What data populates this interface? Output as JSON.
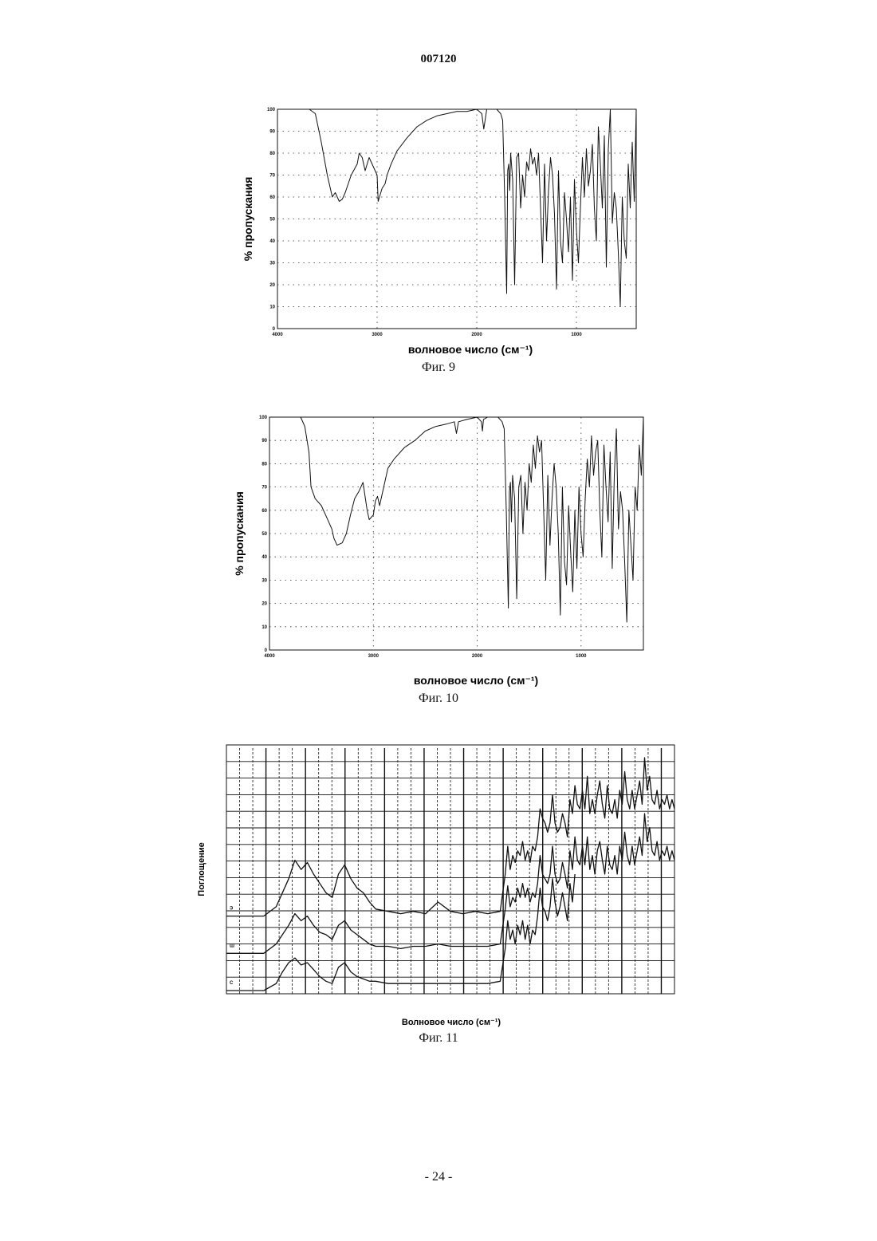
{
  "document": {
    "page_number": "007120",
    "footer": "- 24 -"
  },
  "chart_data": [
    {
      "type": "line",
      "caption": "Фиг. 9",
      "xlabel": "волновое число (см⁻¹)",
      "ylabel": "% пропускания",
      "xlim": [
        4000,
        400
      ],
      "ylim": [
        0,
        100
      ],
      "xticks": [
        "4000",
        "3000",
        "2000",
        "1000"
      ],
      "yticks": [
        "100",
        "90",
        "80",
        "70",
        "60",
        "50",
        "40",
        "30",
        "20",
        "10",
        "0"
      ],
      "grid": true,
      "series": [
        {
          "x": [
            4000,
            3680,
            3620,
            3560,
            3500,
            3450,
            3420,
            3380,
            3350,
            3320,
            3260,
            3200,
            3180,
            3150,
            3120,
            3080,
            3000,
            2990,
            2950,
            2920,
            2900,
            2860,
            2800,
            2700,
            2600,
            2500,
            2400,
            2300,
            2200,
            2100,
            2000,
            1950,
            1930,
            1900,
            1800,
            1760,
            1740,
            1720,
            1700,
            1690,
            1680,
            1670,
            1660,
            1640,
            1620,
            1600,
            1580,
            1560,
            1540,
            1520,
            1500,
            1480,
            1460,
            1440,
            1420,
            1400,
            1380,
            1360,
            1340,
            1320,
            1300,
            1280,
            1260,
            1240,
            1220,
            1200,
            1180,
            1160,
            1140,
            1120,
            1100,
            1080,
            1060,
            1040,
            1020,
            1000,
            980,
            960,
            940,
            920,
            900,
            880,
            860,
            840,
            820,
            800,
            780,
            760,
            740,
            720,
            700,
            680,
            660,
            640,
            620,
            600,
            580,
            560,
            540,
            520,
            500,
            480,
            460,
            440,
            420,
            400
          ],
          "y": [
            100,
            100,
            98,
            85,
            70,
            60,
            62,
            58,
            59,
            62,
            70,
            75,
            80,
            78,
            72,
            78,
            70,
            58,
            64,
            66,
            70,
            75,
            81,
            87,
            92,
            95,
            97,
            98,
            99,
            99,
            100,
            98,
            91,
            100,
            100,
            98,
            95,
            60,
            16,
            72,
            75,
            63,
            80,
            68,
            20,
            78,
            80,
            55,
            70,
            60,
            76,
            72,
            82,
            75,
            78,
            70,
            80,
            55,
            30,
            75,
            40,
            63,
            78,
            70,
            52,
            18,
            72,
            40,
            30,
            62,
            50,
            35,
            60,
            22,
            68,
            45,
            30,
            55,
            78,
            60,
            82,
            65,
            72,
            84,
            55,
            40,
            92,
            75,
            55,
            88,
            28,
            82,
            100,
            48,
            62,
            55,
            35,
            10,
            60,
            40,
            32,
            75,
            55,
            85,
            58,
            100
          ]
        }
      ]
    },
    {
      "type": "line",
      "caption": "Фиг. 10",
      "xlabel": "волновое число (см⁻¹)",
      "ylabel": "% пропускания",
      "xlim": [
        4000,
        400
      ],
      "ylim": [
        0,
        100
      ],
      "xticks": [
        "4000",
        "3000",
        "2000",
        "1000"
      ],
      "yticks": [
        "100",
        "90",
        "80",
        "70",
        "60",
        "50",
        "40",
        "30",
        "20",
        "10",
        "0"
      ],
      "grid": true,
      "series": [
        {
          "x": [
            4000,
            3700,
            3660,
            3620,
            3600,
            3560,
            3500,
            3450,
            3400,
            3380,
            3350,
            3300,
            3260,
            3220,
            3180,
            3140,
            3100,
            3060,
            3040,
            3000,
            2980,
            2960,
            2940,
            2900,
            2860,
            2800,
            2700,
            2600,
            2500,
            2400,
            2300,
            2220,
            2200,
            2180,
            2100,
            2000,
            1960,
            1950,
            1940,
            1900,
            1800,
            1760,
            1740,
            1720,
            1700,
            1690,
            1680,
            1670,
            1660,
            1640,
            1620,
            1600,
            1580,
            1560,
            1540,
            1520,
            1500,
            1480,
            1460,
            1440,
            1420,
            1400,
            1380,
            1360,
            1340,
            1320,
            1300,
            1280,
            1260,
            1240,
            1220,
            1200,
            1180,
            1160,
            1140,
            1120,
            1100,
            1080,
            1060,
            1040,
            1020,
            1000,
            980,
            960,
            940,
            920,
            900,
            880,
            860,
            840,
            820,
            800,
            780,
            760,
            740,
            720,
            700,
            680,
            660,
            640,
            620,
            600,
            580,
            560,
            540,
            520,
            500,
            480,
            460,
            440,
            420,
            400
          ],
          "y": [
            100,
            100,
            96,
            85,
            70,
            65,
            62,
            57,
            52,
            48,
            45,
            46,
            50,
            58,
            65,
            68,
            72,
            60,
            56,
            58,
            64,
            66,
            62,
            70,
            78,
            82,
            87,
            90,
            94,
            96,
            97,
            98,
            93,
            98,
            99,
            100,
            98,
            94,
            99,
            100,
            100,
            98,
            95,
            60,
            18,
            68,
            72,
            55,
            75,
            65,
            22,
            70,
            75,
            50,
            72,
            60,
            80,
            72,
            88,
            78,
            92,
            85,
            90,
            60,
            30,
            75,
            45,
            65,
            80,
            70,
            50,
            15,
            70,
            38,
            28,
            62,
            42,
            25,
            60,
            35,
            70,
            50,
            40,
            65,
            82,
            70,
            92,
            75,
            85,
            90,
            60,
            40,
            88,
            70,
            55,
            85,
            35,
            75,
            95,
            52,
            68,
            60,
            38,
            12,
            60,
            45,
            30,
            70,
            60,
            88,
            75,
            100
          ]
        }
      ]
    },
    {
      "type": "line",
      "caption": "Фиг. 11",
      "xlabel": "Волновое число (см⁻¹)",
      "ylabel": "Поглощение",
      "xlim": [
        4000,
        400
      ],
      "grid": true,
      "series": [
        {
          "name": "Э",
          "x": [
            4000,
            3700,
            3600,
            3500,
            3450,
            3400,
            3350,
            3300,
            3250,
            3200,
            3150,
            3100,
            3050,
            3000,
            2950,
            2900,
            2850,
            2800,
            2700,
            2600,
            2500,
            2400,
            2300,
            2200,
            2100,
            2000,
            1900,
            1800,
            1760,
            1740,
            1720,
            1700,
            1680,
            1660,
            1640,
            1620,
            1600,
            1580,
            1560,
            1540,
            1520,
            1500,
            1480,
            1460,
            1440,
            1420,
            1400,
            1380,
            1360,
            1340,
            1320,
            1300,
            1280,
            1260,
            1240,
            1220,
            1200,
            1180,
            1160,
            1140,
            1120,
            1100,
            1080,
            1060,
            1040,
            1020,
            1000,
            980,
            960,
            940,
            920,
            900,
            880,
            860,
            840,
            820,
            800,
            780,
            760,
            740,
            720,
            700,
            680,
            660,
            640,
            620,
            600,
            580,
            560,
            540,
            520,
            500,
            480,
            460,
            440,
            420,
            400
          ],
          "y": [
            0.32,
            0.32,
            0.36,
            0.48,
            0.56,
            0.52,
            0.55,
            0.5,
            0.46,
            0.42,
            0.4,
            0.5,
            0.54,
            0.48,
            0.44,
            0.42,
            0.38,
            0.35,
            0.34,
            0.33,
            0.34,
            0.33,
            0.38,
            0.34,
            0.33,
            0.34,
            0.33,
            0.34,
            0.5,
            0.62,
            0.52,
            0.58,
            0.55,
            0.6,
            0.58,
            0.64,
            0.56,
            0.6,
            0.55,
            0.62,
            0.6,
            0.66,
            0.78,
            0.74,
            0.72,
            0.68,
            0.72,
            0.84,
            0.72,
            0.68,
            0.7,
            0.76,
            0.72,
            0.66,
            0.82,
            0.76,
            0.88,
            0.8,
            0.78,
            0.86,
            0.78,
            0.92,
            0.76,
            0.82,
            0.76,
            0.84,
            0.9,
            0.8,
            0.74,
            0.88,
            0.78,
            0.76,
            0.82,
            0.74,
            0.86,
            0.8,
            0.94,
            0.82,
            0.78,
            0.86,
            0.78,
            0.84,
            0.9,
            0.8,
            1.0,
            0.86,
            0.92,
            0.82,
            0.8,
            0.86,
            0.78,
            0.82,
            0.8,
            0.84,
            0.78,
            0.82,
            0.78
          ]
        },
        {
          "name": "Ш",
          "x": [
            4000,
            3700,
            3600,
            3500,
            3450,
            3400,
            3350,
            3300,
            3250,
            3200,
            3150,
            3100,
            3050,
            3000,
            2950,
            2900,
            2850,
            2800,
            2700,
            2600,
            2500,
            2400,
            2300,
            2200,
            2100,
            2000,
            1900,
            1800,
            1760,
            1740,
            1720,
            1700,
            1680,
            1660,
            1640,
            1620,
            1600,
            1580,
            1560,
            1540,
            1520,
            1500,
            1480,
            1460,
            1440,
            1420,
            1400,
            1380,
            1360,
            1340,
            1320,
            1300,
            1280,
            1260,
            1240,
            1220,
            1200,
            1180,
            1160,
            1140,
            1120,
            1100,
            1080,
            1060,
            1040,
            1020,
            1000,
            980,
            960,
            940,
            920,
            900,
            880,
            860,
            840,
            820,
            800,
            780,
            760,
            740,
            720,
            700,
            680,
            660,
            640,
            620,
            600,
            580,
            560,
            540,
            520,
            500,
            480,
            460,
            440,
            420,
            400
          ],
          "y": [
            0.16,
            0.16,
            0.2,
            0.28,
            0.33,
            0.3,
            0.32,
            0.28,
            0.25,
            0.24,
            0.22,
            0.28,
            0.3,
            0.26,
            0.24,
            0.22,
            0.2,
            0.19,
            0.19,
            0.18,
            0.19,
            0.19,
            0.2,
            0.19,
            0.19,
            0.19,
            0.19,
            0.2,
            0.35,
            0.45,
            0.36,
            0.4,
            0.38,
            0.44,
            0.4,
            0.46,
            0.4,
            0.44,
            0.38,
            0.42,
            0.4,
            0.46,
            0.58,
            0.5,
            0.48,
            0.46,
            0.5,
            0.62,
            0.5,
            0.46,
            0.48,
            0.55,
            0.5,
            0.44,
            0.6,
            0.52,
            0.66,
            0.56,
            0.54,
            0.62,
            0.54,
            0.66,
            0.52,
            0.58,
            0.5,
            0.6,
            0.64,
            0.56,
            0.5,
            0.62,
            0.54,
            0.52,
            0.58,
            0.5,
            0.62,
            0.56,
            0.68,
            0.58,
            0.54,
            0.62,
            0.54,
            0.6,
            0.66,
            0.58,
            0.76,
            0.64,
            0.7,
            0.6,
            0.58,
            0.64,
            0.56,
            0.6,
            0.58,
            0.62,
            0.56,
            0.6,
            0.56
          ]
        },
        {
          "name": "С",
          "x": [
            4000,
            3700,
            3600,
            3550,
            3500,
            3450,
            3400,
            3350,
            3300,
            3250,
            3200,
            3150,
            3100,
            3050,
            3000,
            2950,
            2900,
            2850,
            2800,
            2700,
            2600,
            2500,
            2400,
            2300,
            2200,
            2100,
            2000,
            1900,
            1800,
            1760,
            1740,
            1720,
            1700,
            1680,
            1660,
            1640,
            1620,
            1600,
            1580,
            1560,
            1540,
            1520,
            1500,
            1480,
            1460,
            1440,
            1420,
            1400,
            1380,
            1360,
            1340,
            1320,
            1300,
            1280,
            1260,
            1240,
            1220,
            1200
          ],
          "y": [
            0.0,
            0.0,
            0.03,
            0.08,
            0.12,
            0.14,
            0.11,
            0.12,
            0.09,
            0.06,
            0.04,
            0.03,
            0.1,
            0.12,
            0.08,
            0.06,
            0.05,
            0.04,
            0.04,
            0.03,
            0.03,
            0.03,
            0.03,
            0.03,
            0.03,
            0.03,
            0.03,
            0.03,
            0.04,
            0.18,
            0.3,
            0.22,
            0.26,
            0.2,
            0.28,
            0.24,
            0.3,
            0.22,
            0.28,
            0.2,
            0.26,
            0.24,
            0.32,
            0.44,
            0.36,
            0.34,
            0.3,
            0.36,
            0.48,
            0.38,
            0.32,
            0.36,
            0.42,
            0.36,
            0.3,
            0.46,
            0.38,
            0.5
          ]
        }
      ]
    }
  ]
}
